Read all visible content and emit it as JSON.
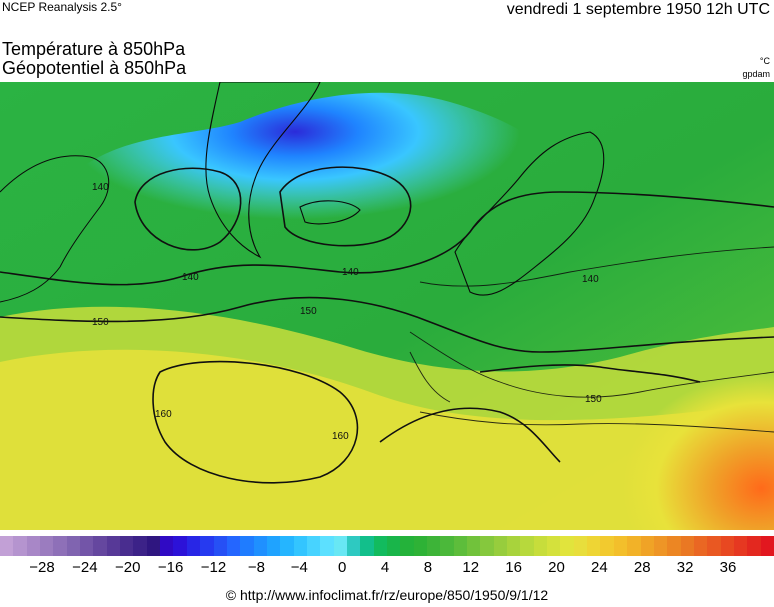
{
  "header": {
    "source": "NCEP Reanalysis 2.5°",
    "datetime": "vendredi 1 septembre 1950 12h UTC"
  },
  "titles": {
    "line1": "Température à 850hPa",
    "line2": "Géopotentiel à 850hPa"
  },
  "units": {
    "temperature": "°C",
    "geopotential": "gpdam"
  },
  "map": {
    "contour_labels": [
      "140",
      "140",
      "140",
      "140",
      "150",
      "150",
      "150",
      "160",
      "160"
    ],
    "colors": {
      "deep_blue": "#2b2bd9",
      "blue": "#1f84ff",
      "light_blue": "#39c6ff",
      "cyan": "#4ad9ef",
      "teal_green": "#18b98a",
      "green": "#27b33b",
      "light_green": "#63c83a",
      "yellow_green": "#a9d63b",
      "yellow": "#e8e23a",
      "orange": "#f0a028",
      "deep_orange": "#ff6a1a"
    }
  },
  "legend": {
    "ticks": [
      "−28",
      "−24",
      "−20",
      "−16",
      "−12",
      "−8",
      "−4",
      "0",
      "4",
      "8",
      "12",
      "16",
      "20",
      "24",
      "28",
      "32",
      "36"
    ],
    "colors": [
      "#c2a0d6",
      "#b594cf",
      "#a887c7",
      "#9b7cbf",
      "#8e70b8",
      "#8064b0",
      "#7355a8",
      "#65479f",
      "#573997",
      "#492d8f",
      "#3c2288",
      "#2f1680",
      "#300ac4",
      "#2c12d8",
      "#2826e6",
      "#263af0",
      "#2650f5",
      "#2466ff",
      "#1f7cff",
      "#1f90ff",
      "#1fa3ff",
      "#25b5ff",
      "#33c5ff",
      "#47d3ff",
      "#5ce0ff",
      "#68e7f4",
      "#2ec9c1",
      "#12bf8b",
      "#12bb5e",
      "#19b54a",
      "#24b23a",
      "#2eb236",
      "#3db438",
      "#4bb83a",
      "#5dbd3b",
      "#71c23b",
      "#85c83d",
      "#97cd3d",
      "#a8d33c",
      "#b7d93c",
      "#c7dd3b",
      "#d4e13c",
      "#e1e43c",
      "#e8de3c",
      "#eed534",
      "#f2ca2f",
      "#f3bf2b",
      "#f2b228",
      "#f0a326",
      "#ee9526",
      "#ec8623",
      "#ea7823",
      "#ea6723",
      "#e95822",
      "#e84821",
      "#e63821",
      "#e3281f",
      "#e2171f"
    ]
  },
  "footer": {
    "credit": "© http://www.infoclimat.fr/rz/europe/850/1950/9/1/12"
  }
}
